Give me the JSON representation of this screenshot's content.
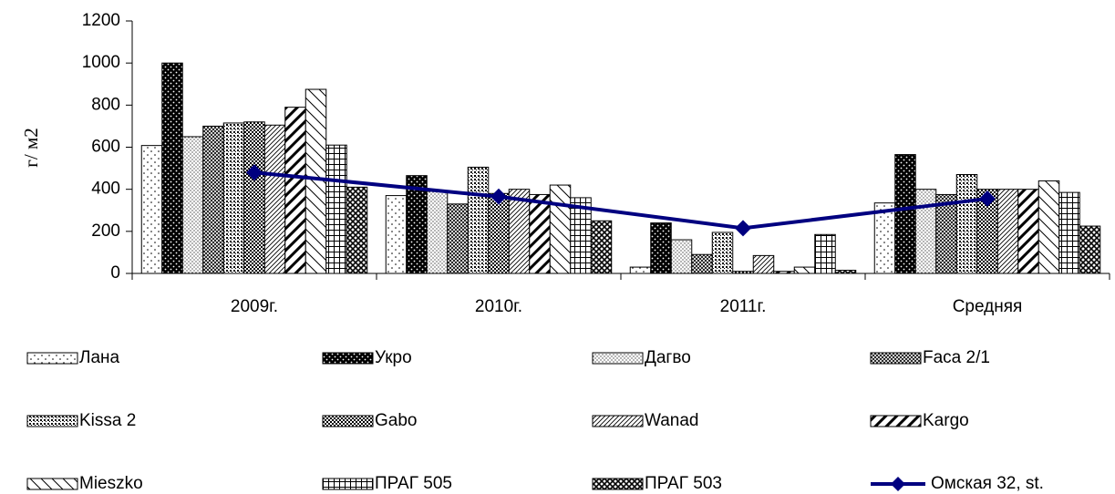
{
  "chart_data": {
    "type": "bar",
    "ylabel": "г/ м2",
    "categories": [
      "2009г.",
      "2010г.",
      "2011г.",
      "Средняя"
    ],
    "ylim": [
      0,
      1200
    ],
    "yticks": [
      0,
      200,
      400,
      600,
      800,
      1000,
      1200
    ],
    "series": [
      {
        "name": "Лана",
        "color": "#000000",
        "values": [
          608,
          370,
          30,
          335
        ]
      },
      {
        "name": "Укро",
        "color": "#000000",
        "values": [
          1000,
          465,
          240,
          565
        ]
      },
      {
        "name": "Дагво",
        "color": "#000000",
        "values": [
          650,
          390,
          160,
          400
        ]
      },
      {
        "name": "Faca 2/1",
        "color": "#000000",
        "values": [
          700,
          330,
          90,
          375
        ]
      },
      {
        "name": "Kissa 2",
        "color": "#000000",
        "values": [
          715,
          505,
          195,
          470
        ]
      },
      {
        "name": "Gabo",
        "color": "#000000",
        "values": [
          720,
          380,
          10,
          400
        ]
      },
      {
        "name": "Wanad",
        "color": "#000000",
        "values": [
          705,
          400,
          85,
          400
        ]
      },
      {
        "name": "Kargo",
        "color": "#000000",
        "values": [
          790,
          375,
          10,
          400
        ]
      },
      {
        "name": "Mieszko",
        "color": "#000000",
        "values": [
          875,
          420,
          30,
          440
        ]
      },
      {
        "name": "ПРАГ 505",
        "color": "#000000",
        "values": [
          610,
          360,
          185,
          385
        ]
      },
      {
        "name": "ПРАГ 503",
        "color": "#000000",
        "values": [
          410,
          250,
          15,
          225
        ]
      },
      {
        "name": "Омская 32, st.",
        "type": "line",
        "color": "#000080",
        "values": [
          480,
          365,
          215,
          355
        ]
      }
    ]
  }
}
